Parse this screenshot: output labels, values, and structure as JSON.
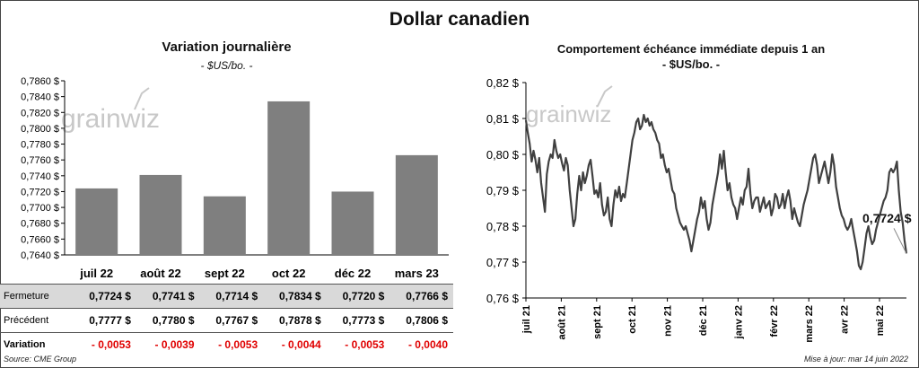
{
  "page_title": "Dollar canadien",
  "left": {
    "title": "Variation  journalière",
    "unit": "- $US/bo. -"
  },
  "right": {
    "title": "Comportement échéance immédiate depuis 1 an",
    "unit": "- $US/bo. -",
    "last_value_label": "0,7724 $"
  },
  "watermark": "grainwiz",
  "table": {
    "rows": [
      {
        "label": "Fermeture",
        "values": [
          "0,7724  $",
          "0,7741  $",
          "0,7714  $",
          "0,7834  $",
          "0,7720  $",
          "0,7766  $"
        ]
      },
      {
        "label": "Précédent",
        "values": [
          "0,7777  $",
          "0,7780  $",
          "0,7767  $",
          "0,7878  $",
          "0,7773  $",
          "0,7806  $"
        ]
      },
      {
        "label": "Variation",
        "values": [
          "- 0,0053",
          "- 0,0039",
          "- 0,0053",
          "- 0,0044",
          "- 0,0053",
          "- 0,0040"
        ]
      }
    ]
  },
  "source": "Source: CME Group",
  "updated": "Mise à jour: mar 14 juin 2022",
  "colors": {
    "bar": "#7f7f7f",
    "line": "#404040",
    "negative": "#e00000",
    "table_band": "#d9d9d9"
  },
  "chart_data": [
    {
      "type": "bar",
      "title": "Variation  journalière",
      "subtitle": "- $US/bo. -",
      "categories": [
        "juil 22",
        "août 22",
        "sept 22",
        "oct 22",
        "déc 22",
        "mars 23"
      ],
      "values": [
        0.7724,
        0.7741,
        0.7714,
        0.7834,
        0.772,
        0.7766
      ],
      "ylim": [
        0.764,
        0.786
      ],
      "yticks": [
        "0,7640 $",
        "0,7660 $",
        "0,7680 $",
        "0,7700 $",
        "0,7720 $",
        "0,7740 $",
        "0,7760 $",
        "0,7780 $",
        "0,7800 $",
        "0,7820 $",
        "0,7840 $",
        "0,7860 $"
      ],
      "grid": false,
      "legend": "none"
    },
    {
      "type": "line",
      "title": "Comportement échéance immédiate depuis 1 an",
      "subtitle": "- $US/bo. -",
      "ylim": [
        0.76,
        0.82
      ],
      "yticks": [
        "0,76 $",
        "0,77 $",
        "0,78 $",
        "0,79 $",
        "0,80 $",
        "0,81 $",
        "0,82 $"
      ],
      "xticks": [
        "juil 21",
        "août 21",
        "sept 21",
        "oct 21",
        "nov 21",
        "déc 21",
        "janv 22",
        "févr 22",
        "mars 22",
        "avr 22",
        "mai 22"
      ],
      "last_value": 0.7724,
      "grid": false,
      "legend": "none",
      "series": [
        {
          "values": [
            0.8095,
            0.806,
            0.803,
            0.798,
            0.801,
            0.7985,
            0.795,
            0.799,
            0.792,
            0.788,
            0.784,
            0.7945,
            0.798,
            0.8,
            0.799,
            0.804,
            0.801,
            0.799,
            0.8,
            0.7975,
            0.7955,
            0.799,
            0.797,
            0.79,
            0.785,
            0.78,
            0.782,
            0.789,
            0.794,
            0.79,
            0.795,
            0.792,
            0.794,
            0.797,
            0.7985,
            0.794,
            0.789,
            0.79,
            0.788,
            0.792,
            0.786,
            0.783,
            0.784,
            0.788,
            0.782,
            0.78,
            0.786,
            0.79,
            0.788,
            0.791,
            0.787,
            0.789,
            0.788,
            0.792,
            0.796,
            0.8,
            0.804,
            0.806,
            0.809,
            0.81,
            0.807,
            0.808,
            0.811,
            0.809,
            0.81,
            0.808,
            0.809,
            0.807,
            0.806,
            0.804,
            0.803,
            0.799,
            0.8,
            0.797,
            0.795,
            0.796,
            0.793,
            0.79,
            0.789,
            0.785,
            0.783,
            0.781,
            0.78,
            0.779,
            0.78,
            0.778,
            0.776,
            0.773,
            0.776,
            0.779,
            0.782,
            0.784,
            0.788,
            0.785,
            0.787,
            0.782,
            0.779,
            0.781,
            0.786,
            0.789,
            0.792,
            0.795,
            0.8,
            0.796,
            0.801,
            0.795,
            0.79,
            0.792,
            0.788,
            0.786,
            0.785,
            0.782,
            0.785,
            0.788,
            0.786,
            0.79,
            0.791,
            0.796,
            0.789,
            0.785,
            0.787,
            0.788,
            0.788,
            0.784,
            0.786,
            0.788,
            0.785,
            0.786,
            0.787,
            0.783,
            0.785,
            0.789,
            0.788,
            0.785,
            0.786,
            0.789,
            0.785,
            0.788,
            0.79,
            0.787,
            0.782,
            0.785,
            0.783,
            0.781,
            0.78,
            0.783,
            0.786,
            0.788,
            0.79,
            0.793,
            0.796,
            0.799,
            0.8,
            0.797,
            0.792,
            0.794,
            0.796,
            0.798,
            0.795,
            0.792,
            0.795,
            0.8,
            0.797,
            0.791,
            0.788,
            0.785,
            0.783,
            0.782,
            0.78,
            0.779,
            0.78,
            0.782,
            0.779,
            0.776,
            0.773,
            0.769,
            0.768,
            0.77,
            0.774,
            0.778,
            0.78,
            0.777,
            0.775,
            0.776,
            0.779,
            0.781,
            0.783,
            0.785,
            0.787,
            0.788,
            0.79,
            0.795,
            0.796,
            0.795,
            0.796,
            0.798,
            0.79,
            0.784,
            0.781,
            0.776,
            0.7724
          ]
        }
      ]
    }
  ]
}
